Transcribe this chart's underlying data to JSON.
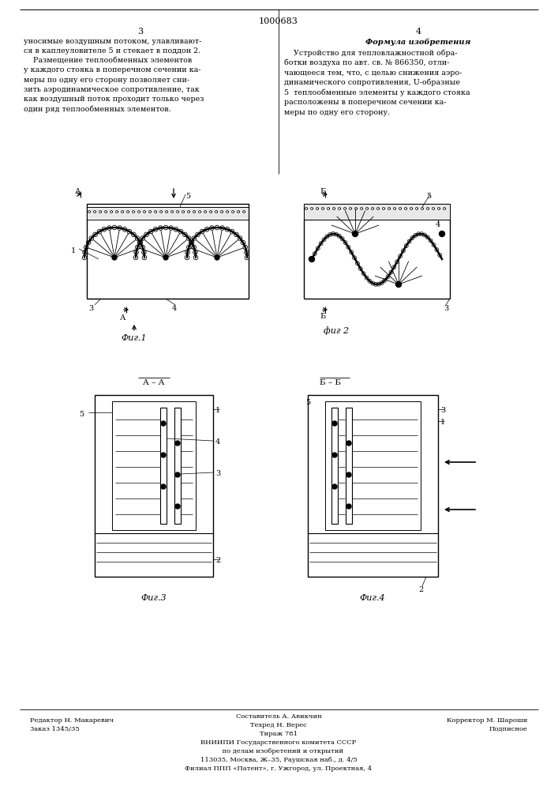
{
  "page_number_center": "1000683",
  "page_col_left": "3",
  "page_col_right": "4",
  "bg_color": "#ffffff",
  "text_color": "#000000",
  "line_color": "#000000",
  "text_left": "уносимые воздушным потоком, улавливают-\nся в каплеуловителе 5 и стекает в поддон 2.\n    Размещение теплообменных элементов\nу каждого стояка в поперечном сечении ка-\nмеры по одну его сторону позволяет сни-\nзить аэродинамическое сопротивление, так\nкак воздушный поток проходит только через\nодин ряд теплообменных элементов.",
  "text_right_title": "Формула изобретения",
  "text_right": "    Устройство для тепловлажностной обра-\nботки воздуха по авт. св. № 866350, отли-\nчающееся тем, что, с целью снижения аэро-\nдинамического сопротивления, U-образные\n5  теплообменные элементы у каждого стояка\nрасположены в поперечном сечении ка-\nмеры по одну его сторону.",
  "fig1_label": "Фиг.1",
  "fig2_label": "фиг 2",
  "fig3_label": "Фиг.3",
  "fig4_label": "Фиг.4",
  "footer_left": "Редактор Н. Макаревич\nЗаказ 1345/35",
  "footer_center_title": "Составитель А. Авикчин",
  "footer_center": "Техред Н. Верес\nТираж 781\nВНИИПИ Государственного комитета СССР\n    по делам изобретений и открытий\n113035, Москва, Ж–35, Раушская наб., д. 4/5\nФилиал ППП «Патент», г. Ужгород, ул. Проектная, 4",
  "footer_right": "Корректор М. Шароши\nПодписное"
}
